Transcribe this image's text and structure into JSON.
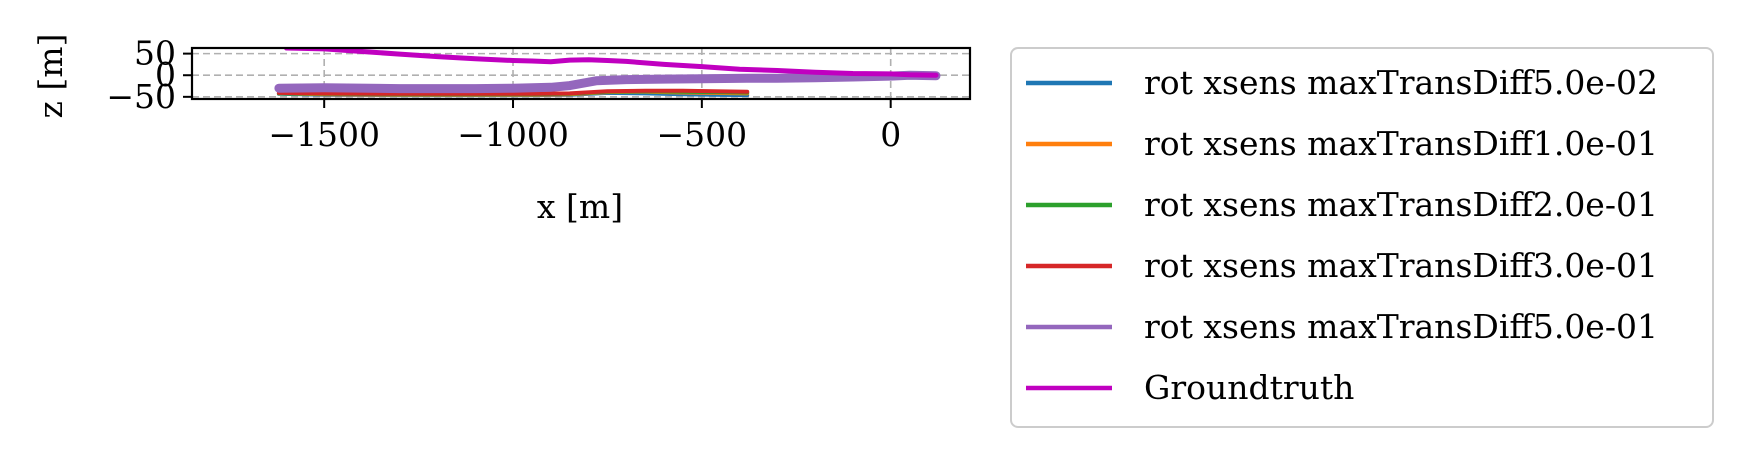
{
  "chart_data": {
    "type": "line",
    "title": "",
    "xlabel": "x [m]",
    "ylabel": "z [m]",
    "xlim": [
      -1850,
      210
    ],
    "ylim": [
      -55,
      63
    ],
    "xticks": [
      {
        "value": -1500,
        "label": "−1500"
      },
      {
        "value": -1000,
        "label": "−1000"
      },
      {
        "value": -500,
        "label": "−500"
      },
      {
        "value": 0,
        "label": "0"
      }
    ],
    "yticks": [
      {
        "value": -50,
        "label": "−50"
      },
      {
        "value": 0,
        "label": "0"
      },
      {
        "value": 50,
        "label": "50"
      }
    ],
    "grid": true,
    "grid_style": "dashed",
    "legend_position": "outside-right",
    "series": [
      {
        "name": "rot xsens maxTransDiff5.0e-02",
        "color": "#1f77b4",
        "x": [
          -1620,
          -1500,
          -1300,
          -1100,
          -950,
          -850,
          -750,
          -650,
          -550,
          -470,
          -380
        ],
        "y": [
          -43,
          -45,
          -46,
          -46,
          -46,
          -45,
          -41,
          -42,
          -44,
          -45,
          -46
        ]
      },
      {
        "name": "rot xsens maxTransDiff1.0e-01",
        "color": "#ff7f0e",
        "x": [
          -1620,
          -1500,
          -1300,
          -1100,
          -950,
          -850,
          -750,
          -650,
          -550,
          -470,
          -380
        ],
        "y": [
          -42,
          -44,
          -45,
          -45,
          -45,
          -44,
          -39,
          -38,
          -40,
          -41,
          -42
        ]
      },
      {
        "name": "rot xsens maxTransDiff2.0e-01",
        "color": "#2ca02c",
        "x": [
          -1620,
          -1500,
          -1300,
          -1100,
          -950,
          -850,
          -750,
          -650,
          -550,
          -470,
          -380
        ],
        "y": [
          -42,
          -43,
          -44,
          -44,
          -44,
          -43,
          -38,
          -37,
          -38,
          -39,
          -40
        ]
      },
      {
        "name": "rot xsens maxTransDiff3.0e-01",
        "color": "#d62728",
        "x": [
          -1620,
          -1500,
          -1300,
          -1100,
          -950,
          -850,
          -750,
          -650,
          -550,
          -470,
          -380
        ],
        "y": [
          -41,
          -42,
          -43,
          -43,
          -43,
          -42,
          -37,
          -36,
          -36,
          -37,
          -38
        ]
      },
      {
        "name": "rot xsens maxTransDiff5.0e-01",
        "color": "#9467bd",
        "x": [
          -1620,
          -1500,
          -1300,
          -1100,
          -1000,
          -900,
          -850,
          -780,
          -700,
          -600,
          -500,
          -380,
          -300,
          -200,
          -100,
          0,
          50,
          120
        ],
        "y": [
          -30,
          -29,
          -31,
          -31,
          -30,
          -28,
          -24,
          -13,
          -10,
          -9,
          -8,
          -7,
          -7,
          -6,
          -4,
          -2,
          0,
          -1
        ]
      },
      {
        "name": "Groundtruth",
        "color": "#c000c0",
        "x": [
          -1600,
          -1500,
          -1400,
          -1300,
          -1200,
          -1100,
          -1000,
          -950,
          -900,
          -850,
          -800,
          -750,
          -700,
          -600,
          -500,
          -400,
          -300,
          -200,
          -100,
          0,
          50,
          120
        ],
        "y": [
          63,
          61,
          55,
          49,
          43,
          38,
          34,
          33,
          31,
          35,
          36,
          34,
          32,
          25,
          20,
          14,
          11,
          7,
          4,
          3,
          1,
          0
        ]
      }
    ]
  }
}
